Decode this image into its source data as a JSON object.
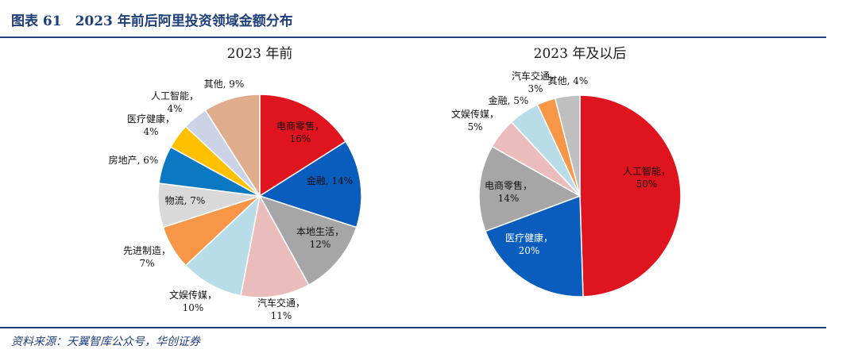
{
  "figure": {
    "title": "图表 61　2023 年前后阿里投资领域金额分布",
    "source": "资料来源：天翼智库公众号，华创证券"
  },
  "chart_data": [
    {
      "type": "pie",
      "title": "2023 年前",
      "unit": "%",
      "slices": [
        {
          "label": "电商零售",
          "value": 16,
          "color": "#e0141e"
        },
        {
          "label": "金融",
          "value": 14,
          "color": "#0a5dbd"
        },
        {
          "label": "本地生活",
          "value": 12,
          "color": "#a6a6a6"
        },
        {
          "label": "汽车交通",
          "value": 11,
          "color": "#ebbcbc"
        },
        {
          "label": "文娱传媒",
          "value": 10,
          "color": "#b8dde9"
        },
        {
          "label": "先进制造",
          "value": 7,
          "color": "#f79646"
        },
        {
          "label": "物流",
          "value": 7,
          "color": "#d9d9d9"
        },
        {
          "label": "房地产",
          "value": 6,
          "color": "#0b78c3"
        },
        {
          "label": "医疗健康",
          "value": 4,
          "color": "#ffc000"
        },
        {
          "label": "人工智能",
          "value": 4,
          "color": "#ccd3e6"
        },
        {
          "label": "其他",
          "value": 9,
          "color": "#dfac8c"
        }
      ]
    },
    {
      "type": "pie",
      "title": "2023 年及以后",
      "unit": "%",
      "slices": [
        {
          "label": "人工智能",
          "value": 50,
          "color": "#e0141e"
        },
        {
          "label": "医疗健康",
          "value": 20,
          "color": "#0a5dbd"
        },
        {
          "label": "电商零售",
          "value": 14,
          "color": "#a6a6a6"
        },
        {
          "label": "文娱传媒",
          "value": 5,
          "color": "#ebbcbc"
        },
        {
          "label": "金融",
          "value": 5,
          "color": "#b8dde9"
        },
        {
          "label": "汽车交通",
          "value": 3,
          "color": "#f79646"
        },
        {
          "label": "其他",
          "value": 4,
          "color": "#bfbfbf"
        }
      ]
    }
  ]
}
